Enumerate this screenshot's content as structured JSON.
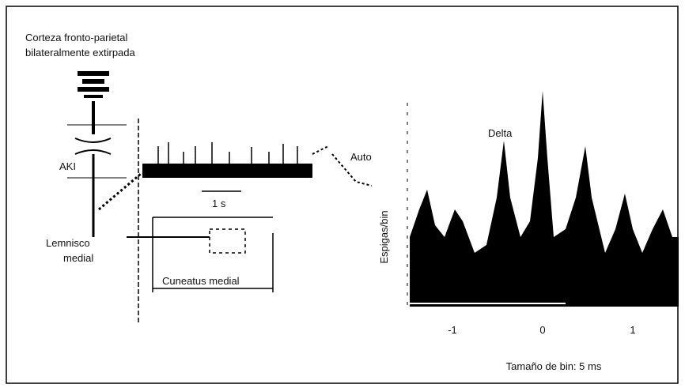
{
  "labels": {
    "cortex_line1": "Corteza fronto-parietal",
    "cortex_line2": "bilateralmente extirpada",
    "auto": "Auto",
    "lemniscus_line1": "Lemnisco",
    "lemniscus_line2": "medial",
    "cuneatus": "Cuneatus medial",
    "delta": "Delta",
    "y_axis": "Espigas/bin",
    "x_axis": "Tamaño de bin: 5 ms",
    "time_scale": "1 s"
  },
  "x_ticks": [
    "-1",
    "0",
    "1"
  ]
}
